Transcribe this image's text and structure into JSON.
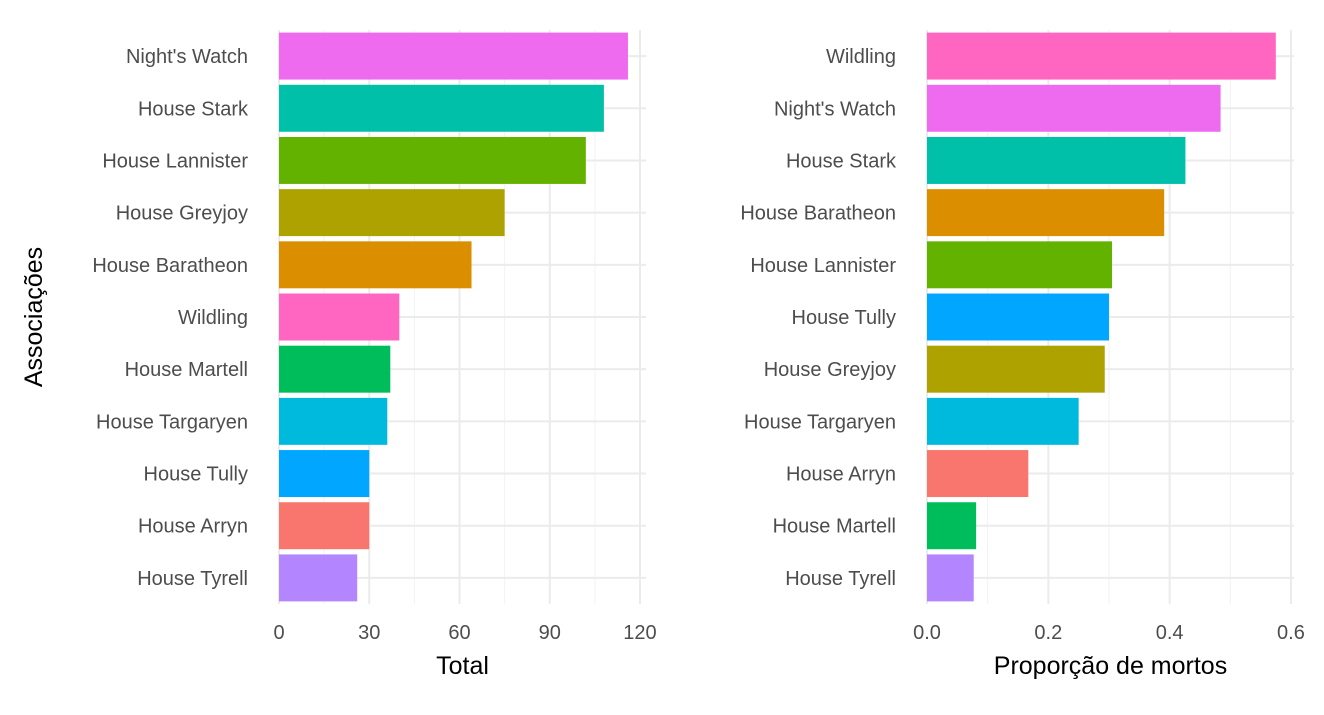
{
  "chart_data": [
    {
      "type": "bar",
      "orientation": "horizontal",
      "ylabel": "Associações",
      "xlabel": "Total",
      "categories": [
        "Night's Watch",
        "House Stark",
        "House Lannister",
        "House Greyjoy",
        "House Baratheon",
        "Wildling",
        "House Martell",
        "House Targaryen",
        "House Tully",
        "House Arryn",
        "House Tyrell"
      ],
      "values": [
        116,
        108,
        102,
        75,
        64,
        40,
        37,
        36,
        30,
        30,
        26
      ],
      "colors": [
        "#EE6AEE",
        "#00C0AA",
        "#64B200",
        "#AEA200",
        "#DB8E00",
        "#FF66C1",
        "#00BD5C",
        "#00BADE",
        "#00A6FF",
        "#F8766D",
        "#B385FF"
      ],
      "xlim": [
        0,
        122
      ],
      "xticks": [
        0,
        30,
        60,
        90,
        120
      ],
      "xtick_labels": [
        "0",
        "30",
        "60",
        "90",
        "120"
      ],
      "grid": true,
      "legend": "none"
    },
    {
      "type": "bar",
      "orientation": "horizontal",
      "xlabel": "Proporção de mortos",
      "categories": [
        "Wildling",
        "Night's Watch",
        "House Stark",
        "House Baratheon",
        "House Lannister",
        "House Tully",
        "House Greyjoy",
        "House Targaryen",
        "House Arryn",
        "House Martell",
        "House Tyrell"
      ],
      "values": [
        0.575,
        0.484,
        0.426,
        0.391,
        0.305,
        0.3,
        0.293,
        0.25,
        0.167,
        0.081,
        0.077
      ],
      "colors": [
        "#FF66C1",
        "#EE6AEE",
        "#00C0AA",
        "#DB8E00",
        "#64B200",
        "#00A6FF",
        "#AEA200",
        "#00BADE",
        "#F8766D",
        "#00BD5C",
        "#B385FF"
      ],
      "xlim": [
        0,
        0.605
      ],
      "xticks": [
        0,
        0.2,
        0.4,
        0.6
      ],
      "xtick_labels": [
        "0.0",
        "0.2",
        "0.4",
        "0.6"
      ],
      "grid": true,
      "legend": "none"
    }
  ]
}
